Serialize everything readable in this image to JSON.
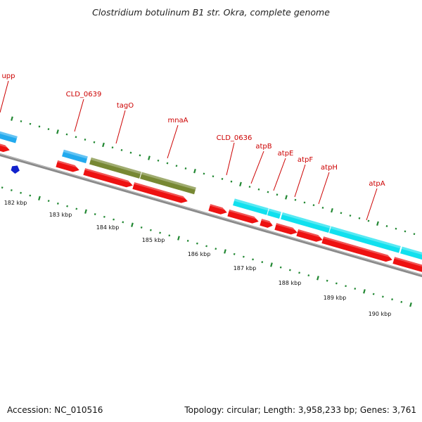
{
  "title": "Clostridium botulinum B1 str. Okra, complete genome",
  "footer": {
    "accession": "Accession: NC_010516",
    "summary": "Topology: circular; Length: 3,958,233 bp; Genes: 3,761"
  },
  "kbp_labels": [
    "182 kbp",
    "183 kbp",
    "184 kbp",
    "185 kbp",
    "186 kbp",
    "187 kbp",
    "188 kbp",
    "189 kbp",
    "190 kbp"
  ],
  "gene_labels": [
    "upp",
    "CLD_0639",
    "tagO",
    "mnaA",
    "CLD_0636",
    "atpB",
    "atpE",
    "atpF",
    "atpH",
    "atpA"
  ],
  "colors": {
    "title": "#222222",
    "gene_label": "#cc0000",
    "backbone": "#8a8a8a",
    "cds": "#ee1111",
    "gene_blue": "#22aaee",
    "gene_olive": "#778833",
    "gene_cyan": "#11e0ee",
    "tick": "#228833",
    "small_feature": "#1122cc"
  }
}
